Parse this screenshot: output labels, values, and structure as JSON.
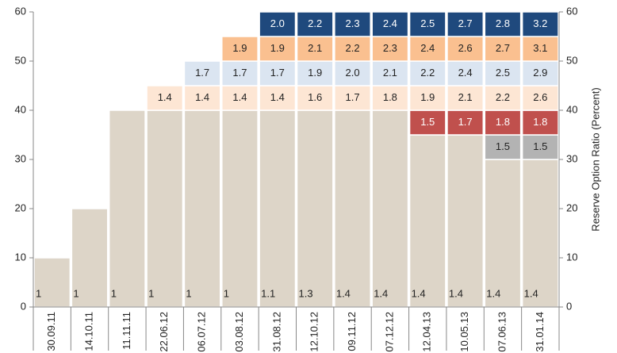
{
  "chart_data": {
    "type": "bar",
    "stacked": true,
    "categories": [
      "30.09.11",
      "14.10.11",
      "11.11.11",
      "22.06.12",
      "06.07.12",
      "03.08.12",
      "31.08.12",
      "12.10.12",
      "09.11.12",
      "07.12.12",
      "12.04.13",
      "10.05.13",
      "07.06.13",
      "31.01.14"
    ],
    "series": [
      {
        "color": "#ddd5c8",
        "label_color": "#222",
        "label_position": "bottom",
        "values": [
          10,
          20,
          40,
          40,
          40,
          40,
          40,
          40,
          40,
          40,
          35,
          35,
          30,
          30
        ],
        "ratios": [
          "1",
          "1",
          "1",
          "1",
          "1",
          "1",
          "1.1",
          "1.3",
          "1.4",
          "1.4",
          "1.4",
          "1.4",
          "1.4",
          "1.4"
        ]
      },
      {
        "color": "#b3b3b3",
        "label_color": "#222",
        "label_position": "center",
        "values": [
          null,
          null,
          null,
          null,
          null,
          null,
          null,
          null,
          null,
          null,
          null,
          null,
          5,
          5
        ],
        "ratios": [
          null,
          null,
          null,
          null,
          null,
          null,
          null,
          null,
          null,
          null,
          null,
          null,
          "1.5",
          "1.5"
        ]
      },
      {
        "color": "#c0504d",
        "label_color": "#fff",
        "label_position": "center",
        "values": [
          null,
          null,
          null,
          null,
          null,
          null,
          null,
          null,
          null,
          null,
          5,
          5,
          5,
          5
        ],
        "ratios": [
          null,
          null,
          null,
          null,
          null,
          null,
          null,
          null,
          null,
          null,
          "1.5",
          "1.7",
          "1.8",
          "1.8"
        ]
      },
      {
        "color": "#fde6d4",
        "label_color": "#222",
        "label_position": "center",
        "values": [
          null,
          null,
          null,
          5,
          5,
          5,
          5,
          5,
          5,
          5,
          5,
          5,
          5,
          5
        ],
        "ratios": [
          null,
          null,
          null,
          "1.4",
          "1.4",
          "1.4",
          "1.4",
          "1.6",
          "1.7",
          "1.8",
          "1.9",
          "2.1",
          "2.2",
          "2.6"
        ]
      },
      {
        "color": "#dbe5f1",
        "label_color": "#222",
        "label_position": "center",
        "values": [
          null,
          null,
          null,
          null,
          5,
          5,
          5,
          5,
          5,
          5,
          5,
          5,
          5,
          5
        ],
        "ratios": [
          null,
          null,
          null,
          null,
          "1.7",
          "1.7",
          "1.7",
          "1.9",
          "2.0",
          "2.1",
          "2.2",
          "2.4",
          "2.5",
          "2.9"
        ]
      },
      {
        "color": "#fac090",
        "label_color": "#222",
        "label_position": "center",
        "values": [
          null,
          null,
          null,
          null,
          null,
          5,
          5,
          5,
          5,
          5,
          5,
          5,
          5,
          5
        ],
        "ratios": [
          null,
          null,
          null,
          null,
          null,
          "1.9",
          "1.9",
          "2.1",
          "2.2",
          "2.3",
          "2.4",
          "2.6",
          "2.7",
          "3.1"
        ]
      },
      {
        "color": "#1f497d",
        "label_color": "#fff",
        "label_position": "center",
        "values": [
          null,
          null,
          null,
          null,
          null,
          null,
          5,
          5,
          5,
          5,
          5,
          5,
          5,
          5
        ],
        "ratios": [
          null,
          null,
          null,
          null,
          null,
          null,
          "2.0",
          "2.2",
          "2.3",
          "2.4",
          "2.5",
          "2.7",
          "2.8",
          "3.2"
        ]
      }
    ],
    "ylim": [
      0,
      60
    ],
    "yticks": [
      0,
      10,
      20,
      30,
      40,
      50,
      60
    ],
    "y2lim": [
      0,
      60
    ],
    "y2ticks": [
      0,
      10,
      20,
      30,
      40,
      50,
      60
    ],
    "y2label": "Reserve Option Ratio (Percent)",
    "grid": false
  }
}
